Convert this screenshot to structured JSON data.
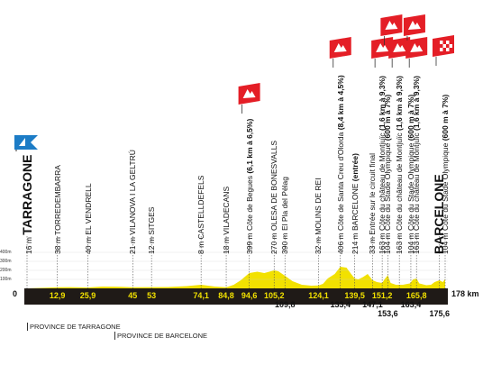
{
  "colors": {
    "profile_yellow": "#f2e100",
    "ground_dark": "#1f1a17",
    "climb_red": "#e41e26",
    "start_blue": "#1c7cc6",
    "finish_checker": "#e41e26"
  },
  "start_km": "0",
  "end_km": "178 km",
  "altitude_ticks": [
    "400m",
    "300m",
    "200m",
    "100m"
  ],
  "provinces": [
    {
      "label": "PROVINCE DE TARRAGONE",
      "km": 0
    },
    {
      "label": "PROVINCE DE BARCELONE",
      "km": 45
    }
  ],
  "profile": [
    [
      0,
      0
    ],
    [
      8,
      8
    ],
    [
      12.9,
      12
    ],
    [
      18,
      14
    ],
    [
      25.9,
      10
    ],
    [
      32,
      20
    ],
    [
      40,
      18
    ],
    [
      45,
      12
    ],
    [
      53,
      14
    ],
    [
      60,
      15
    ],
    [
      68,
      25
    ],
    [
      74.1,
      40
    ],
    [
      80,
      20
    ],
    [
      84.8,
      12
    ],
    [
      88,
      40
    ],
    [
      91,
      90
    ],
    [
      94.6,
      170
    ],
    [
      98,
      185
    ],
    [
      101,
      170
    ],
    [
      105.2,
      200
    ],
    [
      107,
      190
    ],
    [
      109.8,
      140
    ],
    [
      113,
      80
    ],
    [
      117,
      40
    ],
    [
      121,
      30
    ],
    [
      124.1,
      32
    ],
    [
      126,
      50
    ],
    [
      128,
      110
    ],
    [
      131,
      160
    ],
    [
      133.4,
      240
    ],
    [
      136,
      230
    ],
    [
      138,
      160
    ],
    [
      139.5,
      110
    ],
    [
      141,
      100
    ],
    [
      143,
      125
    ],
    [
      145,
      160
    ],
    [
      147.1,
      90
    ],
    [
      149,
      70
    ],
    [
      151.2,
      60
    ],
    [
      152.3,
      105
    ],
    [
      153.6,
      145
    ],
    [
      154.8,
      60
    ],
    [
      157,
      40
    ],
    [
      160,
      40
    ],
    [
      163,
      55
    ],
    [
      164.4,
      100
    ],
    [
      165.8,
      110
    ],
    [
      167,
      55
    ],
    [
      170,
      35
    ],
    [
      172,
      40
    ],
    [
      173.5,
      70
    ],
    [
      175.6,
      90
    ],
    [
      177,
      70
    ],
    [
      178,
      104
    ]
  ],
  "waypoints": [
    {
      "id": "tarragone",
      "km": 0,
      "alt": "16 m",
      "name": "TARRAGONE",
      "big": true
    },
    {
      "id": "torredembarra",
      "km": 12.9,
      "alt": "38 m",
      "name": "TORREDEMBARRA"
    },
    {
      "id": "el-vendrell",
      "km": 25.9,
      "alt": "40 m",
      "name": "EL VENDRELL"
    },
    {
      "id": "vilanova",
      "km": 45,
      "alt": "21 m",
      "name": "VILANOVA I LA GELTRÚ"
    },
    {
      "id": "sitges",
      "km": 53,
      "alt": "12 m",
      "name": "SITGES"
    },
    {
      "id": "castelldefels",
      "km": 74.1,
      "alt": "8 m",
      "name": "CASTELLDEFELS"
    },
    {
      "id": "viladecans",
      "km": 84.8,
      "alt": "18 m",
      "name": "VILADECANS"
    },
    {
      "id": "begues",
      "km": 94.6,
      "alt": "399 m",
      "name": "Côte de Begues",
      "detail": "(6,1 km à 6,5%)",
      "climb": true
    },
    {
      "id": "olesa",
      "km": 105.2,
      "alt": "270 m",
      "name": "OLESA DE BONESVALLS"
    },
    {
      "id": "pla-pelag",
      "km": 109.8,
      "alt": "390 m",
      "name": "El Pla del Pèlag"
    },
    {
      "id": "molins",
      "km": 124.1,
      "alt": "32 m",
      "name": "MOLINS DE REI"
    },
    {
      "id": "santa-creu",
      "km": 133.4,
      "alt": "406 m",
      "name": "Côte de Santa Creu d'Olorda",
      "detail": "(8,4 km à 4,5%)",
      "climb": true
    },
    {
      "id": "barcelone-1",
      "km": 139.5,
      "alt": "214 m",
      "name": "BARCELONE",
      "detail": "(entrée)"
    },
    {
      "id": "circuit",
      "km": 147.1,
      "alt": "33 m",
      "name": "Entrée sur le circuit final"
    },
    {
      "id": "montjuic-1",
      "km": 151.2,
      "alt": "163 m",
      "name": "Côte du château de Montjuïc",
      "detail": "(1,6 km à 9,3%)",
      "climb": true
    },
    {
      "id": "stade-1",
      "km": 153.6,
      "alt": "104 m",
      "name": "Côte du Stade Olympique",
      "detail": "(600 m à 7%)",
      "climb": true
    },
    {
      "id": "montjuic-2",
      "km": 158.5,
      "alt": "163 m",
      "name": "Côte du château de Montjuïc",
      "detail": "(1,6 km à 9,3%)",
      "climb": true
    },
    {
      "id": "stade-2",
      "km": 163.4,
      "alt": "104 m",
      "name": "Côte du Stade Olympique",
      "detail": "(600 m à 7%)",
      "climb": true
    },
    {
      "id": "montjuic-3",
      "km": 165.8,
      "alt": "163 m",
      "name": "Côte du château de Montjuïc",
      "detail": "(1,6 km à 9,3%)",
      "climb": true
    },
    {
      "id": "barcelone-finish",
      "km": 175.6,
      "alt": "",
      "name": "BARCELONE",
      "big": true
    },
    {
      "id": "stade-3",
      "km": 178,
      "alt": "104 m",
      "name": "Côte du Stade Olympique",
      "detail": "(600 m à 7%)",
      "climb": true
    }
  ],
  "km_marks": [
    {
      "text": "12,9",
      "km": 12.9,
      "row": "top"
    },
    {
      "text": "25,9",
      "km": 25.9,
      "row": "top"
    },
    {
      "text": "45",
      "km": 45,
      "row": "top"
    },
    {
      "text": "53",
      "km": 53,
      "row": "top"
    },
    {
      "text": "74,1",
      "km": 74.1,
      "row": "top"
    },
    {
      "text": "84,8",
      "km": 84.8,
      "row": "top"
    },
    {
      "text": "94,6",
      "km": 94.6,
      "row": "top"
    },
    {
      "text": "105,2",
      "km": 105.2,
      "row": "top"
    },
    {
      "text": "124,1",
      "km": 124.1,
      "row": "top"
    },
    {
      "text": "139,5",
      "km": 139.5,
      "row": "top"
    },
    {
      "text": "151,2",
      "km": 151.2,
      "row": "top"
    },
    {
      "text": "165,8",
      "km": 165.8,
      "row": "top"
    },
    {
      "text": "109,8",
      "km": 109.8,
      "row": "bottom1"
    },
    {
      "text": "133,4",
      "km": 133.4,
      "row": "bottom1"
    },
    {
      "text": "147,1",
      "km": 147.1,
      "row": "bottom1"
    },
    {
      "text": "163,4",
      "km": 163.4,
      "row": "bottom1"
    },
    {
      "text": "153,6",
      "km": 153.6,
      "row": "bottom2"
    },
    {
      "text": "175,6",
      "km": 175.6,
      "row": "bottom2"
    }
  ],
  "climb_flags": [
    {
      "km": 94.6,
      "row": 0
    },
    {
      "km": 133.4,
      "row": 2
    },
    {
      "km": 151.2,
      "row": 2
    },
    {
      "km": 153.6,
      "row": 3
    },
    {
      "km": 158.5,
      "row": 2
    },
    {
      "km": 163.4,
      "row": 3
    },
    {
      "km": 165.8,
      "row": 2
    },
    {
      "km": 178,
      "row": 1,
      "finish": true
    }
  ]
}
